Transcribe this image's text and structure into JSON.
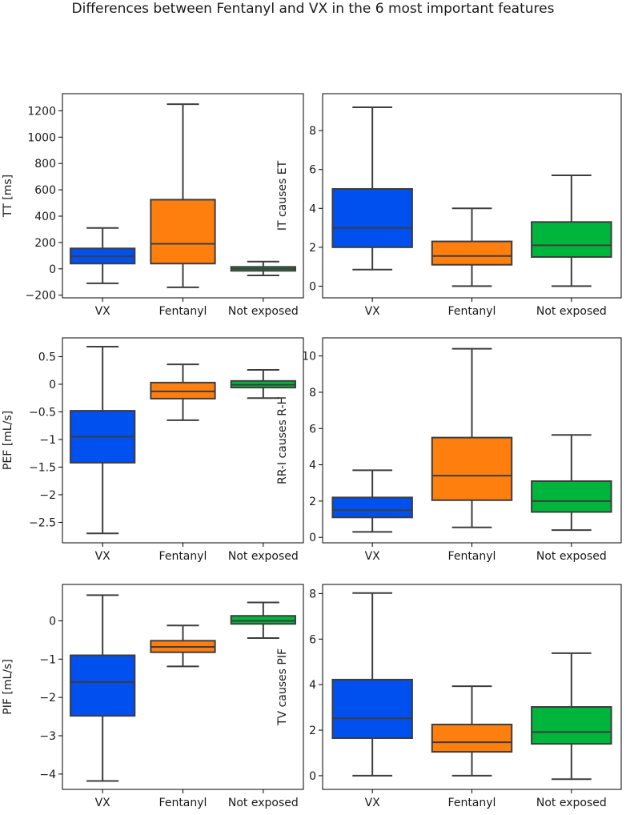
{
  "title": "Differences between Fentanyl and VX in the 6 most important features",
  "colors": {
    "VX": "#0050ef",
    "Fentanyl": "#ff7f0e",
    "Not exposed": "#00b53c",
    "line": "#3d3d3d"
  },
  "chart_data": [
    {
      "type": "box",
      "ylabel": "TT [ms]",
      "ylim": [
        -220,
        1330
      ],
      "yticks": [
        -200,
        0,
        200,
        400,
        600,
        800,
        1000,
        1200
      ],
      "categories": [
        "VX",
        "Fentanyl",
        "Not exposed"
      ],
      "boxes": [
        {
          "whislo": -110,
          "q1": 40,
          "median": 95,
          "q3": 155,
          "whishi": 310
        },
        {
          "whislo": -140,
          "q1": 40,
          "median": 190,
          "q3": 525,
          "whishi": 1250
        },
        {
          "whislo": -50,
          "q1": -15,
          "median": 0,
          "q3": 15,
          "whishi": 55
        }
      ]
    },
    {
      "type": "box",
      "ylabel": "IT causes ET",
      "ylim": [
        -0.6,
        9.9
      ],
      "yticks": [
        0,
        2,
        4,
        6,
        8
      ],
      "categories": [
        "VX",
        "Fentanyl",
        "Not exposed"
      ],
      "boxes": [
        {
          "whislo": 0.85,
          "q1": 2.0,
          "median": 3.0,
          "q3": 5.0,
          "whishi": 9.2
        },
        {
          "whislo": 0.0,
          "q1": 1.1,
          "median": 1.55,
          "q3": 2.3,
          "whishi": 4.0
        },
        {
          "whislo": 0.0,
          "q1": 1.5,
          "median": 2.1,
          "q3": 3.3,
          "whishi": 5.7
        }
      ]
    },
    {
      "type": "box",
      "ylabel": "PEF [mL/s]",
      "ylim": [
        -2.87,
        0.84
      ],
      "yticks": [
        -2.5,
        -2.0,
        -1.5,
        -1.0,
        -0.5,
        0.0,
        0.5
      ],
      "categories": [
        "VX",
        "Fentanyl",
        "Not exposed"
      ],
      "boxes": [
        {
          "whislo": -2.7,
          "q1": -1.42,
          "median": -0.95,
          "q3": -0.48,
          "whishi": 0.68
        },
        {
          "whislo": -0.65,
          "q1": -0.26,
          "median": -0.13,
          "q3": 0.03,
          "whishi": 0.36
        },
        {
          "whislo": -0.25,
          "q1": -0.06,
          "median": -0.01,
          "q3": 0.06,
          "whishi": 0.26
        }
      ]
    },
    {
      "type": "box",
      "ylabel": "RR-I causes R-H",
      "ylim": [
        -0.3,
        11.0
      ],
      "yticks": [
        0,
        2,
        4,
        6,
        8,
        10
      ],
      "categories": [
        "VX",
        "Fentanyl",
        "Not exposed"
      ],
      "boxes": [
        {
          "whislo": 0.3,
          "q1": 1.1,
          "median": 1.5,
          "q3": 2.2,
          "whishi": 3.7
        },
        {
          "whislo": 0.55,
          "q1": 2.05,
          "median": 3.4,
          "q3": 5.5,
          "whishi": 10.4
        },
        {
          "whislo": 0.4,
          "q1": 1.4,
          "median": 2.0,
          "q3": 3.1,
          "whishi": 5.65
        }
      ]
    },
    {
      "type": "box",
      "ylabel": "PIF [mL/s]",
      "ylim": [
        -4.4,
        0.95
      ],
      "yticks": [
        -4,
        -3,
        -2,
        -1,
        0
      ],
      "categories": [
        "VX",
        "Fentanyl",
        "Not exposed"
      ],
      "boxes": [
        {
          "whislo": -4.18,
          "q1": -2.48,
          "median": -1.6,
          "q3": -0.9,
          "whishi": 0.67
        },
        {
          "whislo": -1.19,
          "q1": -0.82,
          "median": -0.68,
          "q3": -0.52,
          "whishi": -0.12
        },
        {
          "whislo": -0.45,
          "q1": -0.08,
          "median": 0.0,
          "q3": 0.13,
          "whishi": 0.48
        }
      ]
    },
    {
      "type": "box",
      "ylabel": "TV causes PIF",
      "ylim": [
        -0.6,
        8.4
      ],
      "yticks": [
        0,
        2,
        4,
        6,
        8
      ],
      "categories": [
        "VX",
        "Fentanyl",
        "Not exposed"
      ],
      "boxes": [
        {
          "whislo": 0.0,
          "q1": 1.65,
          "median": 2.52,
          "q3": 4.22,
          "whishi": 8.02
        },
        {
          "whislo": 0.0,
          "q1": 1.05,
          "median": 1.47,
          "q3": 2.25,
          "whishi": 3.93
        },
        {
          "whislo": -0.15,
          "q1": 1.4,
          "median": 1.92,
          "q3": 3.02,
          "whishi": 5.38
        }
      ]
    }
  ]
}
